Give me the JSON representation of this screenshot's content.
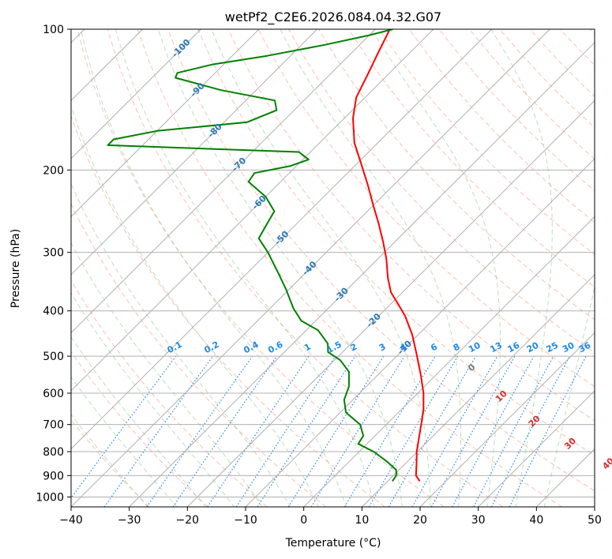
{
  "chart_data": {
    "type": "line",
    "title": "wetPf2_C2E6.2026.084.04.32.G07",
    "xlabel": "Temperature (°C)",
    "ylabel": "Pressure (hPa)",
    "xlim": [
      -40,
      50
    ],
    "ylim": [
      1050,
      100
    ],
    "y_scale": "log",
    "x_ticks": [
      -40,
      -30,
      -20,
      -10,
      0,
      10,
      20,
      30,
      40,
      50
    ],
    "y_ticks": [
      100,
      200,
      300,
      400,
      500,
      600,
      700,
      800,
      900,
      1000
    ],
    "grid": true,
    "skew": true,
    "series": [
      {
        "role": "temperature",
        "color": "#ff0000",
        "points": [
          [
            15.5,
            925
          ],
          [
            13.9,
            900
          ],
          [
            12.0,
            850
          ],
          [
            9.9,
            800
          ],
          [
            8.0,
            750
          ],
          [
            6.0,
            700
          ],
          [
            3.8,
            650
          ],
          [
            1.0,
            600
          ],
          [
            -2.5,
            550
          ],
          [
            -6.5,
            500
          ],
          [
            -11.0,
            450
          ],
          [
            -15.5,
            410
          ],
          [
            -19.0,
            385
          ],
          [
            -22.0,
            365
          ],
          [
            -25.0,
            340
          ],
          [
            -28.5,
            310
          ],
          [
            -32.0,
            285
          ],
          [
            -36.0,
            260
          ],
          [
            -40.0,
            238
          ],
          [
            -44.5,
            215
          ],
          [
            -49.0,
            195
          ],
          [
            -54.0,
            175
          ],
          [
            -58.5,
            155
          ],
          [
            -61.5,
            140
          ],
          [
            -63.5,
            125
          ],
          [
            -65.5,
            112
          ],
          [
            -67.5,
            100
          ]
        ]
      },
      {
        "role": "dewpoint",
        "color": "#008000",
        "points": [
          [
            10.8,
            925
          ],
          [
            10.5,
            900
          ],
          [
            9.5,
            875
          ],
          [
            6.5,
            840
          ],
          [
            2.5,
            800
          ],
          [
            -1.5,
            770
          ],
          [
            -2.0,
            740
          ],
          [
            -4.5,
            700
          ],
          [
            -9.0,
            660
          ],
          [
            -11.5,
            620
          ],
          [
            -13.0,
            580
          ],
          [
            -15.5,
            540
          ],
          [
            -19.0,
            510
          ],
          [
            -22.5,
            490
          ],
          [
            -24.0,
            470
          ],
          [
            -28.0,
            440
          ],
          [
            -32.5,
            420
          ],
          [
            -36.0,
            395
          ],
          [
            -40.5,
            360
          ],
          [
            -45.0,
            330
          ],
          [
            -50.0,
            300
          ],
          [
            -54.0,
            280
          ],
          [
            -55.0,
            262
          ],
          [
            -56.0,
            245
          ],
          [
            -60.0,
            228
          ],
          [
            -65.5,
            212
          ],
          [
            -66.0,
            203
          ],
          [
            -61.0,
            196
          ],
          [
            -59.0,
            190
          ],
          [
            -62.0,
            183
          ],
          [
            -96.0,
            177
          ],
          [
            -96.0,
            172
          ],
          [
            -90.0,
            165
          ],
          [
            -76.0,
            158
          ],
          [
            -73.0,
            149
          ],
          [
            -75.0,
            142
          ],
          [
            -86.0,
            135
          ],
          [
            -96.0,
            127
          ],
          [
            -96.5,
            124
          ],
          [
            -92.0,
            119
          ],
          [
            -84.0,
            114
          ],
          [
            -76.0,
            108
          ],
          [
            -70.0,
            103
          ],
          [
            -67.0,
            100
          ]
        ]
      }
    ],
    "isotherm_labels": [
      "-100",
      "-90",
      "-80",
      "-70",
      "-60",
      "-50",
      "-40",
      "-30",
      "-20",
      "-10"
    ],
    "mixing_ratio_labels": [
      "0.1",
      "0.2",
      "0.4",
      "0.6",
      "1",
      "1.5",
      "2",
      "3",
      "4",
      "6",
      "8",
      "10",
      "13",
      "16",
      "20",
      "25",
      "30",
      "36"
    ],
    "dry_adiabat_labels": [
      "0",
      "10",
      "20",
      "30",
      "40"
    ],
    "colors": {
      "temperature": "#ff0000",
      "dewpoint": "#008000",
      "isotherm_label": "#2878b4",
      "mixing_ratio": "#1e88e5",
      "dry_adiabat": "#ff8c69",
      "moist_adiabat": "#8fc88f",
      "dry_adiabat_label": "#d32f2f",
      "grid": "#b0b0b0"
    }
  }
}
